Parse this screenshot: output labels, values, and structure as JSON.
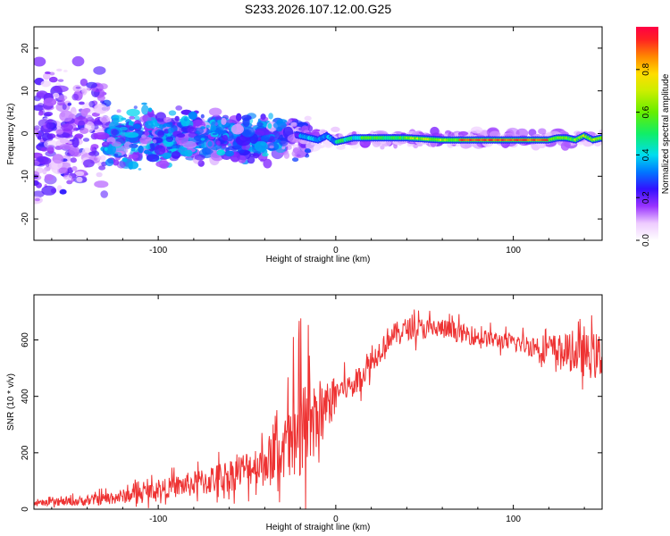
{
  "chart_data": [
    {
      "type": "heatmap",
      "title": "S233.2026.107.12.00.G25",
      "xlabel": "Height of straight line (km)",
      "ylabel": "Frequency (Hz)",
      "xlim": [
        -170,
        150
      ],
      "ylim": [
        -25,
        25
      ],
      "xticks": [
        -100,
        0,
        100
      ],
      "yticks": [
        -20,
        -10,
        0,
        10,
        20
      ],
      "colorbar": {
        "label": "Normalized spectral amplitude",
        "range": [
          0,
          1
        ],
        "ticks": [
          0.0,
          0.2,
          0.4,
          0.6,
          0.8
        ]
      },
      "ridge": {
        "description_points_x": [
          -20,
          -10,
          -5,
          0,
          5,
          10,
          20,
          40,
          60,
          80,
          100,
          120,
          125,
          130,
          135,
          140,
          145,
          150
        ],
        "description_points_y": [
          -0.5,
          -1.5,
          -0.5,
          -2.0,
          -1.5,
          -1.0,
          -1.0,
          -1.0,
          -1.5,
          -1.5,
          -1.5,
          -1.5,
          -1.0,
          -1.0,
          -1.5,
          -0.5,
          -1.5,
          -1.0
        ]
      }
    },
    {
      "type": "line",
      "title": "",
      "xlabel": "Height of straight line (km)",
      "ylabel": "SNR (10 * v/v)",
      "xlim": [
        -170,
        150
      ],
      "ylim": [
        0,
        760
      ],
      "xticks": [
        -100,
        0,
        100
      ],
      "yticks": [
        0,
        200,
        400,
        600
      ],
      "series": [
        {
          "name": "SNR",
          "color": "#ee3333",
          "trend_x": [
            -170,
            -140,
            -120,
            -100,
            -80,
            -60,
            -40,
            -30,
            -20,
            -10,
            0,
            10,
            20,
            30,
            40,
            60,
            80,
            100,
            120,
            140,
            150
          ],
          "trend_y": [
            20,
            30,
            45,
            70,
            90,
            120,
            170,
            210,
            260,
            300,
            420,
            440,
            520,
            610,
            640,
            640,
            610,
            590,
            570,
            545,
            540
          ],
          "noise_x": [
            -170,
            -100,
            -40,
            -20,
            -10,
            0,
            100,
            150
          ],
          "noise_amplitude": [
            10,
            40,
            90,
            220,
            170,
            60,
            35,
            110
          ]
        }
      ]
    }
  ]
}
